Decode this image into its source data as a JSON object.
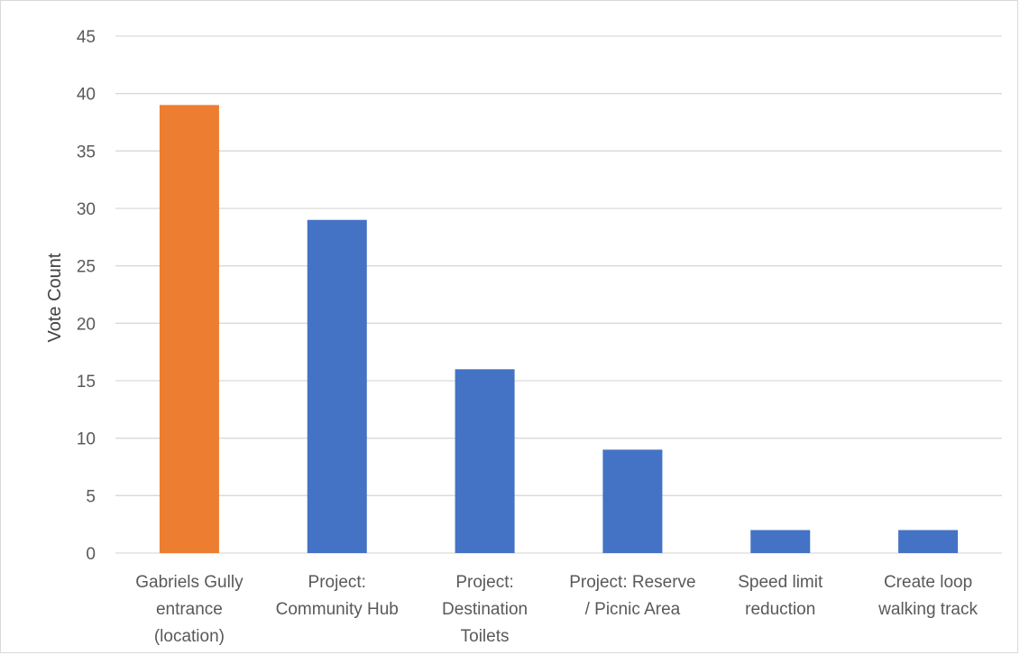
{
  "chart_data": {
    "type": "bar",
    "categories": [
      [
        "Gabriels Gully",
        "entrance",
        "(location)"
      ],
      [
        "Project:",
        "Community Hub"
      ],
      [
        "Project:",
        "Destination",
        "Toilets"
      ],
      [
        "Project: Reserve",
        "/ Picnic Area"
      ],
      [
        "Speed limit",
        "reduction"
      ],
      [
        "Create loop",
        "walking track"
      ]
    ],
    "values": [
      39,
      29,
      16,
      9,
      2,
      2
    ],
    "bar_colors": [
      "#ED7D31",
      "#4472C4",
      "#4472C4",
      "#4472C4",
      "#4472C4",
      "#4472C4"
    ],
    "ylabel": "Vote Count",
    "xlabel": "",
    "title": "",
    "ylim": [
      0,
      45
    ],
    "yticks": [
      0,
      5,
      10,
      15,
      20,
      25,
      30,
      35,
      40,
      45
    ],
    "grid": true,
    "gridline_color": "#d9d9d9",
    "text_color": "#595959"
  }
}
